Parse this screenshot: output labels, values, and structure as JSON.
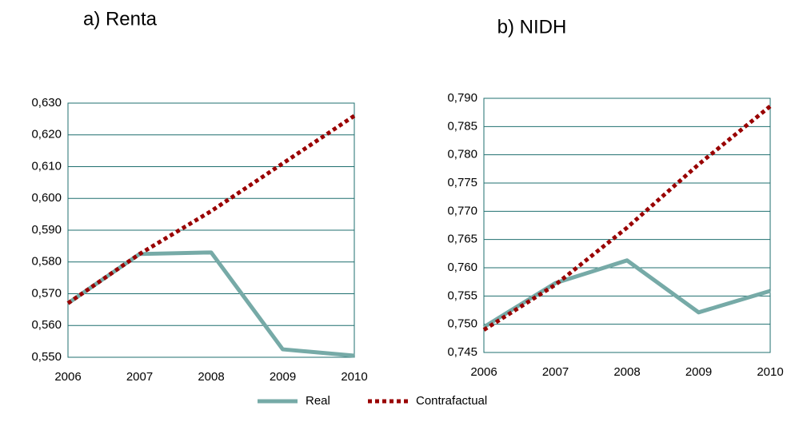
{
  "chart_data": [
    {
      "type": "line",
      "title": "a) Renta",
      "categories": [
        "2006",
        "2007",
        "2008",
        "2009",
        "2010"
      ],
      "series": [
        {
          "name": "Real",
          "color": "#76aaa7",
          "values": [
            0.567,
            0.5825,
            0.583,
            0.5525,
            0.5505
          ]
        },
        {
          "name": "Contrafactual",
          "color": "#990000",
          "dashed": true,
          "values": [
            0.567,
            0.5825,
            0.596,
            0.611,
            0.626
          ]
        }
      ],
      "ylim": [
        0.55,
        0.63
      ],
      "yticks": [
        {
          "value": 0.55,
          "label": "0,550"
        },
        {
          "value": 0.56,
          "label": "0,560"
        },
        {
          "value": 0.57,
          "label": "0,570"
        },
        {
          "value": 0.58,
          "label": "0,580"
        },
        {
          "value": 0.59,
          "label": "0,590"
        },
        {
          "value": 0.6,
          "label": "0,600"
        },
        {
          "value": 0.61,
          "label": "0,610"
        },
        {
          "value": 0.62,
          "label": "0,620"
        },
        {
          "value": 0.63,
          "label": "0,630"
        }
      ],
      "grid": true
    },
    {
      "type": "line",
      "title": "b) NIDH",
      "categories": [
        "2006",
        "2007",
        "2008",
        "2009",
        "2010"
      ],
      "series": [
        {
          "color": "#76aaa7",
          "values": [
            0.7495,
            0.7573,
            0.7613,
            0.7521,
            0.7559
          ]
        },
        {
          "color": "#990000",
          "dashed": true,
          "values": [
            0.749,
            0.757,
            0.7671,
            0.7783,
            0.7886
          ]
        }
      ],
      "ylim": [
        0.745,
        0.79
      ],
      "yticks": [
        {
          "value": 0.745,
          "label": "0,745"
        },
        {
          "value": 0.75,
          "label": "0,750"
        },
        {
          "value": 0.755,
          "label": "0,755"
        },
        {
          "value": 0.76,
          "label": "0,760"
        },
        {
          "value": 0.765,
          "label": "0,765"
        },
        {
          "value": 0.77,
          "label": "0,770"
        },
        {
          "value": 0.775,
          "label": "0,775"
        },
        {
          "value": 0.78,
          "label": "0,780"
        },
        {
          "value": 0.785,
          "label": "0,785"
        },
        {
          "value": 0.79,
          "label": "0,790"
        }
      ],
      "grid": true
    }
  ]
}
